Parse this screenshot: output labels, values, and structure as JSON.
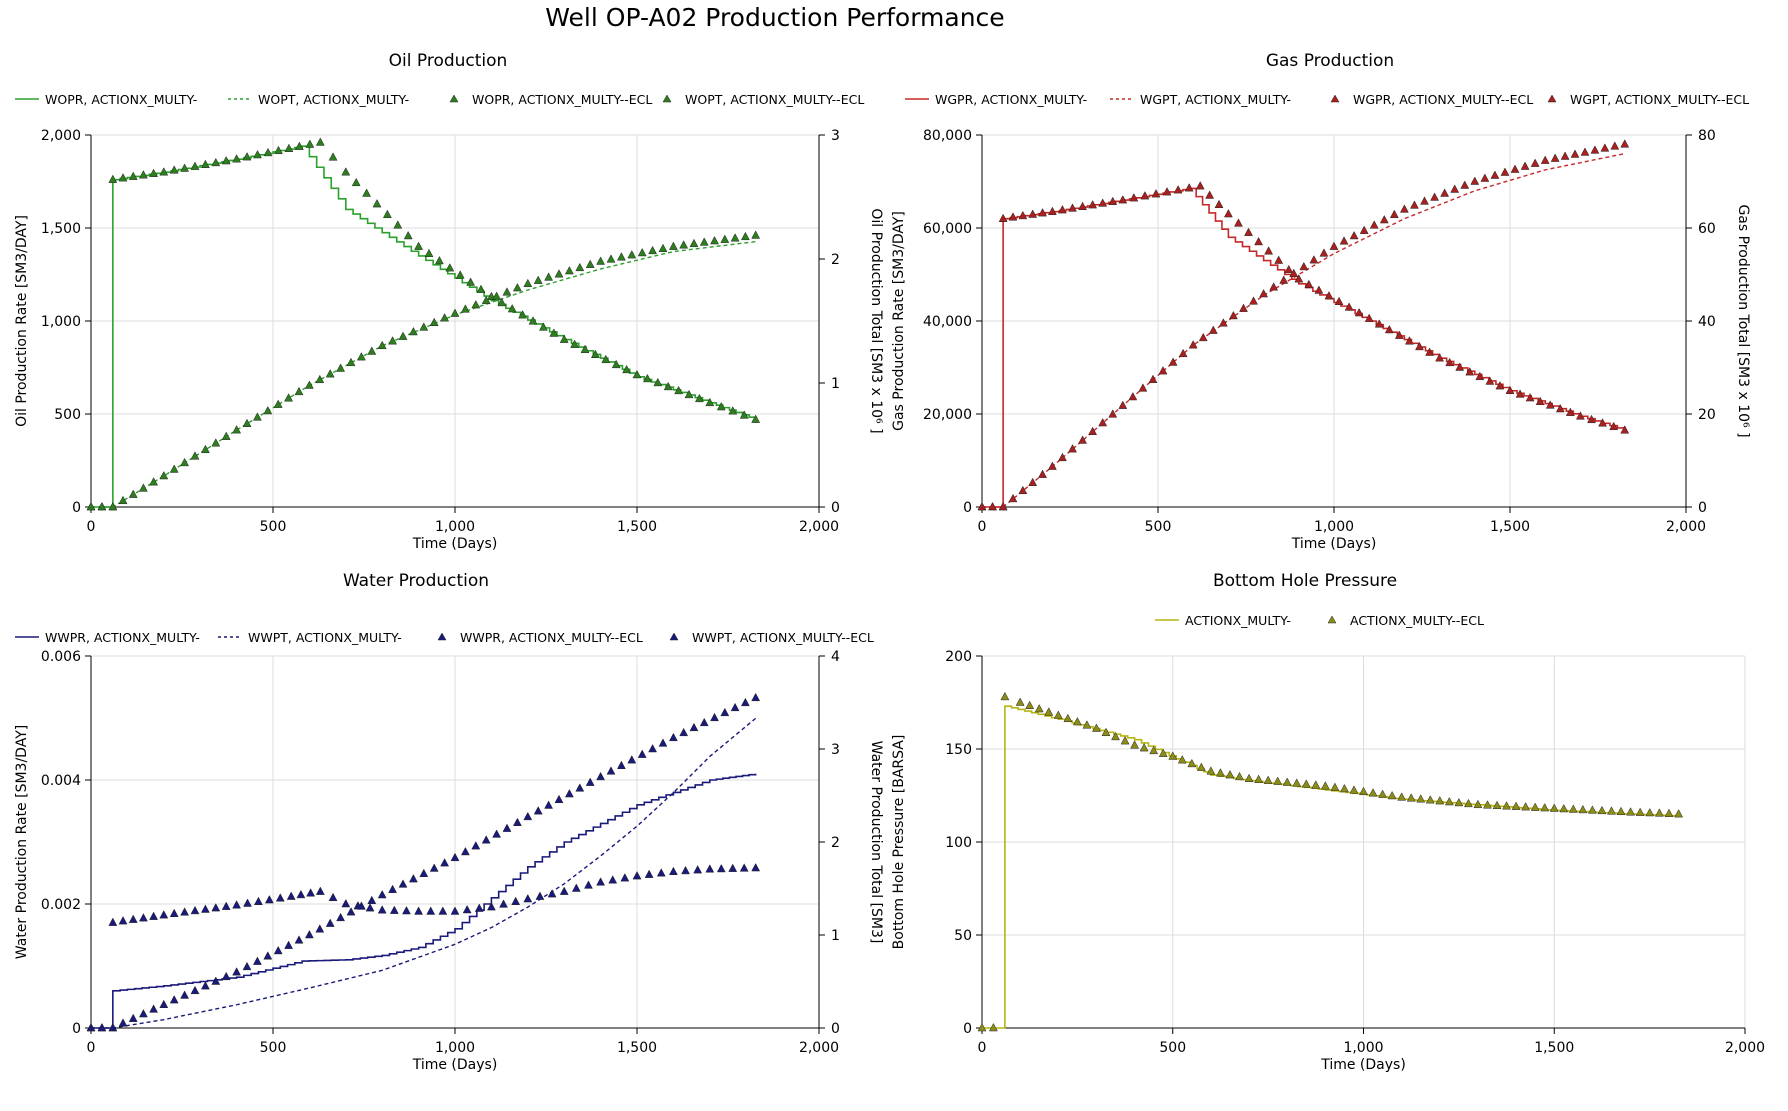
{
  "title": "Well OP-A02 Production Performance",
  "colors": {
    "oil": "#2ca02c",
    "oil_marker": "#2e7d1e",
    "gas": "#c62828",
    "gas_marker": "#a82020",
    "water": "#1a1a7a",
    "water_marker": "#1a1a7a",
    "bhp": "#b5b514",
    "bhp_marker": "#8b8b1a",
    "grid": "#dcdcdc"
  },
  "chart_data": [
    {
      "id": "oil",
      "type": "line",
      "title": "Oil Production",
      "xlabel": "Time (Days)",
      "ylabel": "Oil Production Rate [SM3/DAY]",
      "y2label": "Oil Production Total [SM3 x 10⁶ ]",
      "xlim": [
        0,
        2000
      ],
      "ylim": [
        0,
        2000
      ],
      "y2lim": [
        0,
        3
      ],
      "xticks": [
        "0",
        "500",
        "1,000",
        "1,500",
        "2,000"
      ],
      "yticks": [
        "0",
        "500",
        "1,000",
        "1,500",
        "2,000"
      ],
      "y2ticks": [
        "0",
        "1",
        "2",
        "3"
      ],
      "legend": [
        "WOPR, ACTIONX_MULTY-",
        "WOPT, ACTIONX_MULTY-",
        "WOPR, ACTIONX_MULTY--ECL",
        "WOPT, ACTIONX_MULTY--ECL"
      ],
      "series": [
        {
          "name": "WOPR, ACTIONX_MULTY-",
          "style": "step",
          "axis": "left",
          "x": [
            0,
            60,
            60,
            200,
            400,
            580,
            700,
            900,
            1100,
            1300,
            1500,
            1700,
            1826
          ],
          "y": [
            0,
            0,
            1760,
            1800,
            1870,
            1940,
            1600,
            1350,
            1110,
            900,
            700,
            560,
            470
          ]
        },
        {
          "name": "WOPT, ACTIONX_MULTY-",
          "style": "dashed",
          "axis": "right",
          "x": [
            0,
            60,
            200,
            400,
            600,
            800,
            1000,
            1200,
            1400,
            1600,
            1826
          ],
          "y": [
            0,
            0,
            0.25,
            0.62,
            0.98,
            1.3,
            1.55,
            1.75,
            1.92,
            2.06,
            2.14
          ]
        },
        {
          "name": "WOPR, ACTIONX_MULTY--ECL",
          "style": "marker",
          "axis": "left",
          "x": [
            0,
            60,
            60,
            200,
            400,
            630,
            700,
            900,
            1100,
            1300,
            1500,
            1700,
            1826
          ],
          "y": [
            0,
            0,
            1760,
            1800,
            1870,
            1960,
            1800,
            1400,
            1130,
            900,
            710,
            560,
            470
          ]
        },
        {
          "name": "WOPT, ACTIONX_MULTY--ECL",
          "style": "marker",
          "axis": "right",
          "x": [
            0,
            60,
            200,
            400,
            600,
            800,
            1000,
            1200,
            1400,
            1600,
            1826
          ],
          "y": [
            0,
            0,
            0.25,
            0.62,
            0.98,
            1.3,
            1.56,
            1.8,
            1.98,
            2.1,
            2.19
          ]
        }
      ]
    },
    {
      "id": "gas",
      "type": "line",
      "title": "Gas Production",
      "xlabel": "Time (Days)",
      "ylabel": "Gas Production Rate [SM3/DAY]",
      "y2label": "Gas Production Total [SM3 x 10⁶ ]",
      "xlim": [
        0,
        2000
      ],
      "ylim": [
        0,
        80000
      ],
      "y2lim": [
        0,
        80
      ],
      "xticks": [
        "0",
        "500",
        "1,000",
        "1,500",
        "2,000"
      ],
      "yticks": [
        "0",
        "20,000",
        "40,000",
        "60,000",
        "80,000"
      ],
      "y2ticks": [
        "0",
        "20",
        "40",
        "60",
        "80"
      ],
      "legend": [
        "WGPR, ACTIONX_MULTY-",
        "WGPT, ACTIONX_MULTY-",
        "WGPR, ACTIONX_MULTY--ECL",
        "WGPT, ACTIONX_MULTY--ECL"
      ],
      "series": [
        {
          "name": "WGPR, ACTIONX_MULTY-",
          "style": "step",
          "axis": "left",
          "x": [
            0,
            60,
            60,
            200,
            400,
            590,
            700,
            900,
            1100,
            1300,
            1500,
            1700,
            1826
          ],
          "y": [
            0,
            0,
            62000,
            63500,
            66000,
            68500,
            58000,
            48000,
            40000,
            32000,
            25000,
            19500,
            16500
          ]
        },
        {
          "name": "WGPT, ACTIONX_MULTY-",
          "style": "dashed",
          "axis": "right",
          "x": [
            0,
            60,
            200,
            400,
            600,
            800,
            1000,
            1200,
            1400,
            1600,
            1826
          ],
          "y": [
            0,
            0,
            8.7,
            21.8,
            34.8,
            45.5,
            54.5,
            62,
            68,
            72.5,
            76
          ]
        },
        {
          "name": "WGPR, ACTIONX_MULTY--ECL",
          "style": "marker",
          "axis": "left",
          "x": [
            0,
            60,
            60,
            200,
            400,
            620,
            700,
            900,
            1100,
            1300,
            1500,
            1700,
            1826
          ],
          "y": [
            0,
            0,
            62000,
            63500,
            66000,
            69000,
            63000,
            49000,
            40500,
            32000,
            25000,
            19500,
            16500
          ]
        },
        {
          "name": "WGPT, ACTIONX_MULTY--ECL",
          "style": "marker",
          "axis": "right",
          "x": [
            0,
            60,
            200,
            400,
            600,
            800,
            1000,
            1200,
            1400,
            1600,
            1826
          ],
          "y": [
            0,
            0,
            8.7,
            21.8,
            34.8,
            45.8,
            56,
            64,
            70,
            74.5,
            78
          ]
        }
      ]
    },
    {
      "id": "water",
      "type": "line",
      "title": "Water Production",
      "xlabel": "Time (Days)",
      "ylabel": "Water Production Rate [SM3/DAY]",
      "y2label": "Water Production Total [SM3]",
      "xlim": [
        0,
        2000
      ],
      "ylim": [
        0,
        0.006
      ],
      "y2lim": [
        0,
        4
      ],
      "xticks": [
        "0",
        "500",
        "1,000",
        "1,500",
        "2,000"
      ],
      "yticks": [
        "0",
        "0.002",
        "0.004",
        "0.006"
      ],
      "y2ticks": [
        "0",
        "1",
        "2",
        "3",
        "4"
      ],
      "legend": [
        "WWPR, ACTIONX_MULTY-",
        "WWPT, ACTIONX_MULTY-",
        "WWPR, ACTIONX_MULTY--ECL",
        "WWPT, ACTIONX_MULTY--ECL"
      ],
      "series": [
        {
          "name": "WWPR, ACTIONX_MULTY-",
          "style": "step",
          "axis": "left",
          "x": [
            0,
            60,
            60,
            200,
            400,
            580,
            700,
            800,
            900,
            1000,
            1100,
            1200,
            1300,
            1400,
            1500,
            1600,
            1700,
            1826
          ],
          "y": [
            0,
            0,
            0.0006,
            0.00068,
            0.00082,
            0.00108,
            0.0011,
            0.00117,
            0.0013,
            0.0016,
            0.0021,
            0.0026,
            0.003,
            0.0033,
            0.0036,
            0.0038,
            0.004,
            0.0041
          ]
        },
        {
          "name": "WWPT, ACTIONX_MULTY-",
          "style": "dashed",
          "axis": "right",
          "x": [
            0,
            60,
            200,
            400,
            600,
            800,
            1000,
            1100,
            1200,
            1300,
            1400,
            1500,
            1600,
            1700,
            1826
          ],
          "y": [
            0,
            0,
            0.09,
            0.25,
            0.43,
            0.62,
            0.9,
            1.08,
            1.3,
            1.55,
            1.85,
            2.17,
            2.53,
            2.92,
            3.33
          ]
        },
        {
          "name": "WWPR, ACTIONX_MULTY--ECL",
          "style": "marker",
          "axis": "left",
          "x": [
            0,
            60,
            60,
            200,
            400,
            550,
            630,
            700,
            800,
            900,
            1000,
            1100,
            1200,
            1300,
            1400,
            1500,
            1600,
            1700,
            1826
          ],
          "y": [
            0,
            0,
            0.0017,
            0.00182,
            0.00198,
            0.00212,
            0.0022,
            0.002,
            0.0019,
            0.00188,
            0.00188,
            0.00195,
            0.00208,
            0.0022,
            0.00235,
            0.00245,
            0.00252,
            0.00256,
            0.00258
          ]
        },
        {
          "name": "WWPT, ACTIONX_MULTY--ECL",
          "style": "marker",
          "axis": "right",
          "x": [
            0,
            60,
            200,
            400,
            600,
            800,
            1000,
            1200,
            1400,
            1600,
            1826
          ],
          "y": [
            0,
            0,
            0.25,
            0.6,
            1.0,
            1.43,
            1.83,
            2.27,
            2.7,
            3.12,
            3.55
          ]
        }
      ]
    },
    {
      "id": "bhp",
      "type": "line",
      "title": "Bottom Hole Pressure",
      "xlabel": "Time (Days)",
      "ylabel": "Bottom Hole Pressure [BARSA]",
      "xlim": [
        0,
        2000
      ],
      "ylim": [
        0,
        200
      ],
      "xticks": [
        "0",
        "500",
        "1,000",
        "1,500",
        "2,000"
      ],
      "yticks": [
        "0",
        "50",
        "100",
        "150",
        "200"
      ],
      "legend": [
        "ACTIONX_MULTY-",
        "ACTIONX_MULTY--ECL"
      ],
      "series": [
        {
          "name": "ACTIONX_MULTY-",
          "style": "step",
          "axis": "left",
          "x": [
            0,
            60,
            60,
            200,
            400,
            600,
            700,
            900,
            1100,
            1300,
            1500,
            1700,
            1826
          ],
          "y": [
            0,
            0,
            173,
            166,
            155,
            136,
            133,
            128,
            123,
            120,
            117,
            115,
            114
          ]
        },
        {
          "name": "ACTIONX_MULTY--ECL",
          "style": "marker",
          "axis": "left",
          "x": [
            0,
            30,
            60,
            100,
            200,
            300,
            400,
            500,
            600,
            700,
            800,
            900,
            1000,
            1100,
            1200,
            1300,
            1400,
            1500,
            1600,
            1700,
            1826
          ],
          "y": [
            0,
            0,
            178,
            175,
            168,
            161,
            152,
            146,
            138,
            134,
            132,
            130,
            127,
            124,
            122,
            120,
            119,
            118,
            117,
            116,
            115
          ]
        }
      ]
    }
  ]
}
